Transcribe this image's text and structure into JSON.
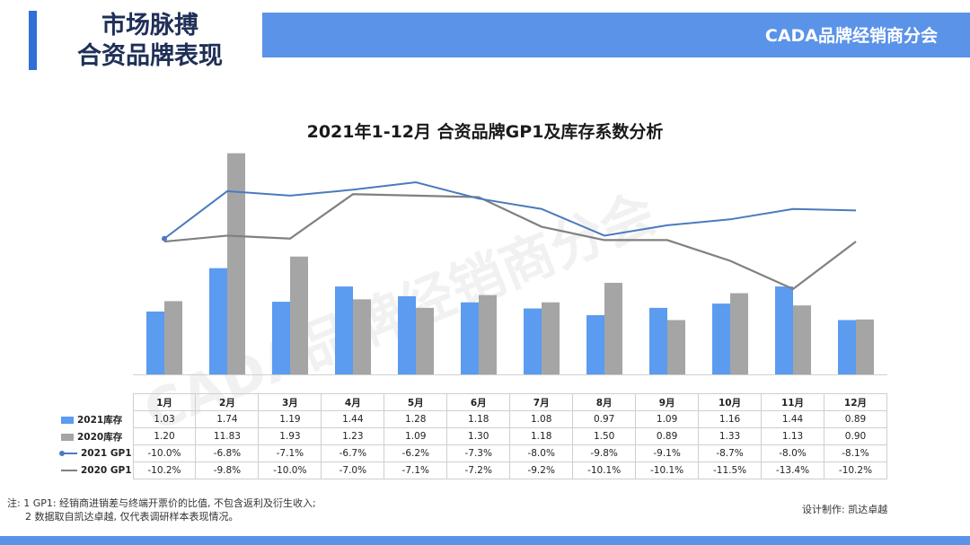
{
  "header": {
    "title_line1": "市场脉搏",
    "title_line2": "合资品牌表现",
    "org": "CADA品牌经销商分会"
  },
  "watermark": "CADA品牌经销商分会",
  "colors": {
    "inv2021": "#5b9bf0",
    "inv2020": "#a5a5a5",
    "gp2021": "#4a7abf",
    "gp2020": "#808080",
    "band": "#5a93e8"
  },
  "chart_data": {
    "type": "bar",
    "title": "2021年1-12月 合资品牌GP1及库存系数分析",
    "categories": [
      "1月",
      "2月",
      "3月",
      "4月",
      "5月",
      "6月",
      "7月",
      "8月",
      "9月",
      "10月",
      "11月",
      "12月"
    ],
    "series": [
      {
        "name": "2021库存",
        "kind": "bar",
        "values": [
          1.03,
          1.74,
          1.19,
          1.44,
          1.28,
          1.18,
          1.08,
          0.97,
          1.09,
          1.16,
          1.44,
          0.89
        ],
        "labels": [
          "1.03",
          "1.74",
          "1.19",
          "1.44",
          "1.28",
          "1.18",
          "1.08",
          "0.97",
          "1.09",
          "1.16",
          "1.44",
          "0.89"
        ]
      },
      {
        "name": "2020库存",
        "kind": "bar",
        "values": [
          1.2,
          11.83,
          1.93,
          1.23,
          1.09,
          1.3,
          1.18,
          1.5,
          0.89,
          1.33,
          1.13,
          0.9
        ],
        "labels": [
          "1.20",
          "11.83",
          "1.93",
          "1.23",
          "1.09",
          "1.30",
          "1.18",
          "1.50",
          "0.89",
          "1.33",
          "1.13",
          "0.90"
        ]
      },
      {
        "name": "2021 GP1",
        "kind": "line",
        "values": [
          -10.0,
          -6.8,
          -7.1,
          -6.7,
          -6.2,
          -7.3,
          -8.0,
          -9.8,
          -9.1,
          -8.7,
          -8.0,
          -8.1
        ],
        "labels": [
          "-10.0%",
          "-6.8%",
          "-7.1%",
          "-6.7%",
          "-6.2%",
          "-7.3%",
          "-8.0%",
          "-9.8%",
          "-9.1%",
          "-8.7%",
          "-8.0%",
          "-8.1%"
        ]
      },
      {
        "name": "2020 GP1",
        "kind": "line",
        "values": [
          -10.2,
          -9.8,
          -10.0,
          -7.0,
          -7.1,
          -7.2,
          -9.2,
          -10.1,
          -10.1,
          -11.5,
          -13.4,
          -10.2
        ],
        "labels": [
          "-10.2%",
          "-9.8%",
          "-10.0%",
          "-7.0%",
          "-7.1%",
          "-7.2%",
          "-9.2%",
          "-10.1%",
          "-10.1%",
          "-11.5%",
          "-13.4%",
          "-10.2%"
        ]
      }
    ],
    "grid": false,
    "legend": "data-table"
  },
  "notes": {
    "line1": "注: 1 GP1: 经销商进销差与终端开票价的比值, 不包含返利及衍生收入;",
    "line2": "2 数据取自凯达卓越, 仅代表调研样本表现情况。"
  },
  "credit": "设计制作: 凯达卓越"
}
